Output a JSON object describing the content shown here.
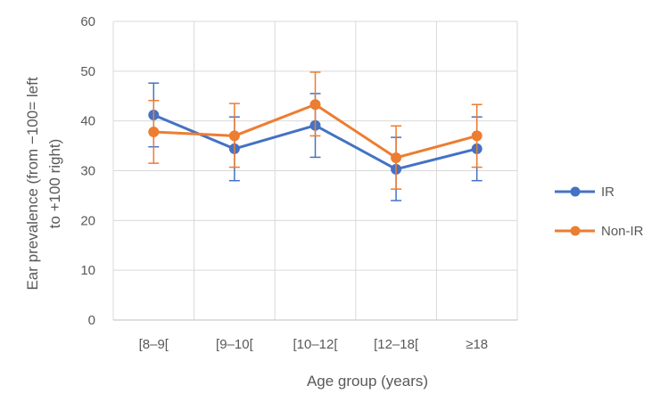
{
  "chart_data": {
    "type": "line",
    "title": "",
    "xlabel": "Age group (years)",
    "ylabel_lines": [
      "Ear prevalence (from −100= left",
      "to +100 right)"
    ],
    "categories": [
      "[8–9[",
      "[9–10[",
      "[10–12[",
      "[12–18[",
      "≥18"
    ],
    "ylim": [
      0,
      60
    ],
    "yticks": [
      0,
      10,
      20,
      30,
      40,
      50,
      60
    ],
    "grid": true,
    "legend_position": "right",
    "series": [
      {
        "name": "IR",
        "color": "#4472C4",
        "values": [
          41.2,
          34.4,
          39.1,
          30.3,
          34.4
        ],
        "error_low": [
          34.8,
          28.0,
          32.7,
          24.0,
          28.0
        ],
        "error_high": [
          47.6,
          40.8,
          45.5,
          36.7,
          40.8
        ]
      },
      {
        "name": "Non-IR",
        "color": "#ED7D31",
        "values": [
          37.8,
          37.0,
          43.3,
          32.6,
          37.0
        ],
        "error_low": [
          31.5,
          30.7,
          37.0,
          26.3,
          30.7
        ],
        "error_high": [
          44.1,
          43.5,
          49.8,
          39.0,
          43.3
        ]
      }
    ]
  }
}
